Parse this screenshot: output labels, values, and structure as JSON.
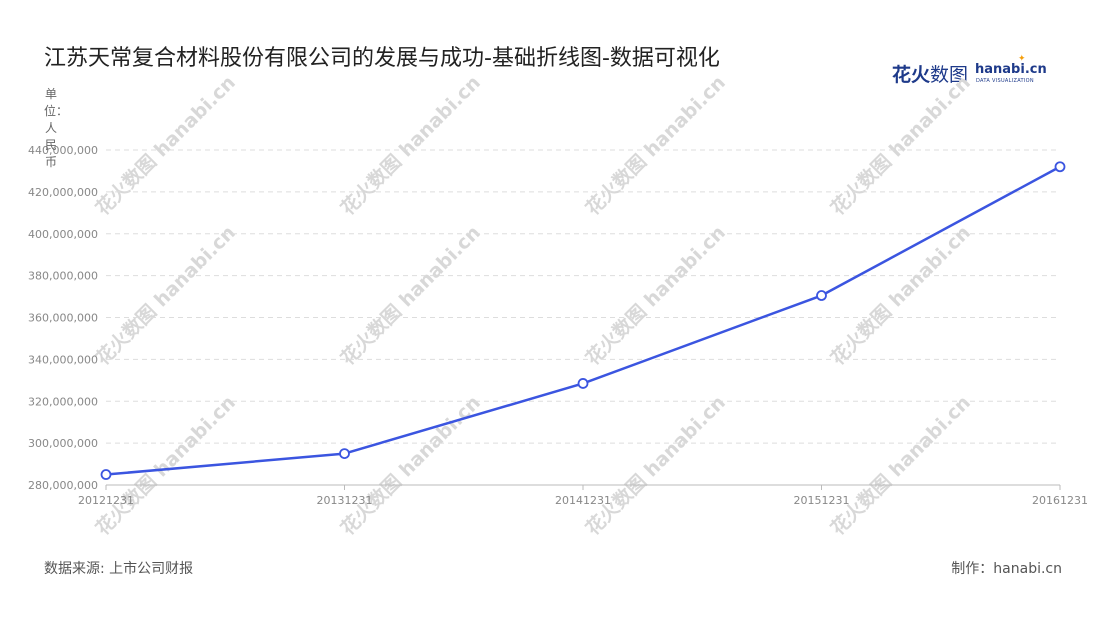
{
  "title": "江苏天常复合材料股份有限公司的发展与成功-基础折线图-数据可视化",
  "logo": {
    "main": "花火",
    "main_thin": "数图",
    "domain": "hanabi.cn",
    "sub": "DATA VISUALIZATION",
    "watermark": "花火数图 hanabi.cn"
  },
  "unit_label": "单位：人民币",
  "source": "数据来源: 上市公司财报",
  "credit": "制作：hanabi.cn",
  "colors": {
    "line": "#3b55e0",
    "marker_fill": "#ffffff",
    "grid": "#dddddd",
    "axis": "#bbbbbb",
    "tick_text": "#888888",
    "watermark": "#d8d8d8"
  },
  "chart_data": {
    "type": "line",
    "title": "江苏天常复合材料股份有限公司的发展与成功-基础折线图-数据可视化",
    "xlabel": "",
    "ylabel": "单位：人民币",
    "categories": [
      "20121231",
      "20131231",
      "20141231",
      "20151231",
      "20161231"
    ],
    "series": [
      {
        "values": [
          285000000,
          295000000,
          328500000,
          370500000,
          432000000
        ]
      }
    ],
    "ylim": [
      280000000,
      440000000
    ],
    "yticks": [
      280000000,
      300000000,
      320000000,
      340000000,
      360000000,
      380000000,
      400000000,
      420000000,
      440000000
    ],
    "grid": true,
    "legend": "none"
  }
}
